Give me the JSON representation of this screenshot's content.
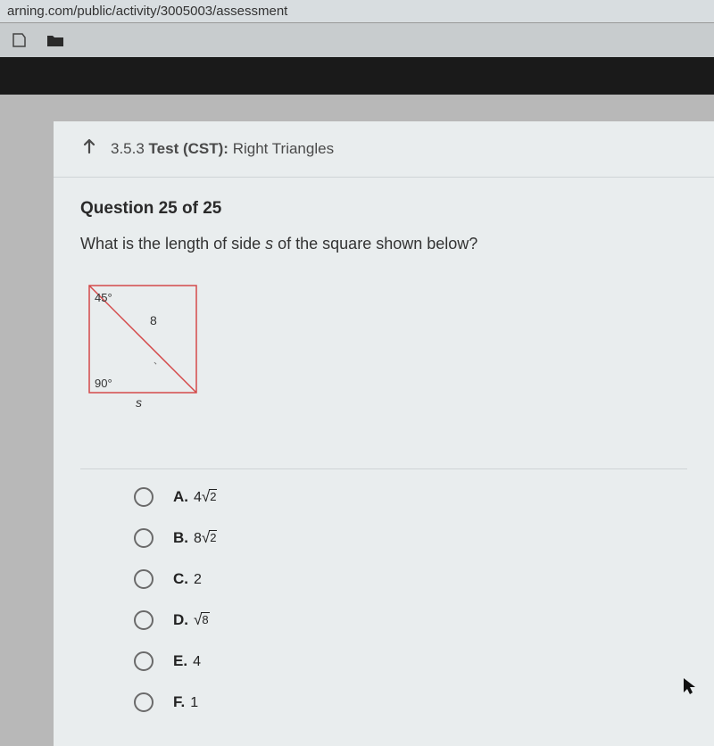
{
  "url": "arning.com/public/activity/3005003/assessment",
  "header": {
    "section": "3.5.3",
    "title_bold": "Test (CST):",
    "title_rest": "Right Triangles"
  },
  "question": {
    "heading": "Question 25 of 25",
    "prompt_before": "What is the length of side ",
    "prompt_var": "s",
    "prompt_after": " of the square shown below?"
  },
  "diagram": {
    "angle_top": "45°",
    "hyp_label": "8",
    "angle_bottom": "90°",
    "side_label": "s",
    "stroke": "#d44a4a",
    "size": 130
  },
  "options": [
    {
      "letter": "A.",
      "pre": "4",
      "rad": "2"
    },
    {
      "letter": "B.",
      "pre": "8",
      "rad": "2"
    },
    {
      "letter": "C.",
      "plain": "2"
    },
    {
      "letter": "D.",
      "pre": "",
      "rad": "8"
    },
    {
      "letter": "E.",
      "plain": "4"
    },
    {
      "letter": "F.",
      "plain": "1"
    }
  ]
}
